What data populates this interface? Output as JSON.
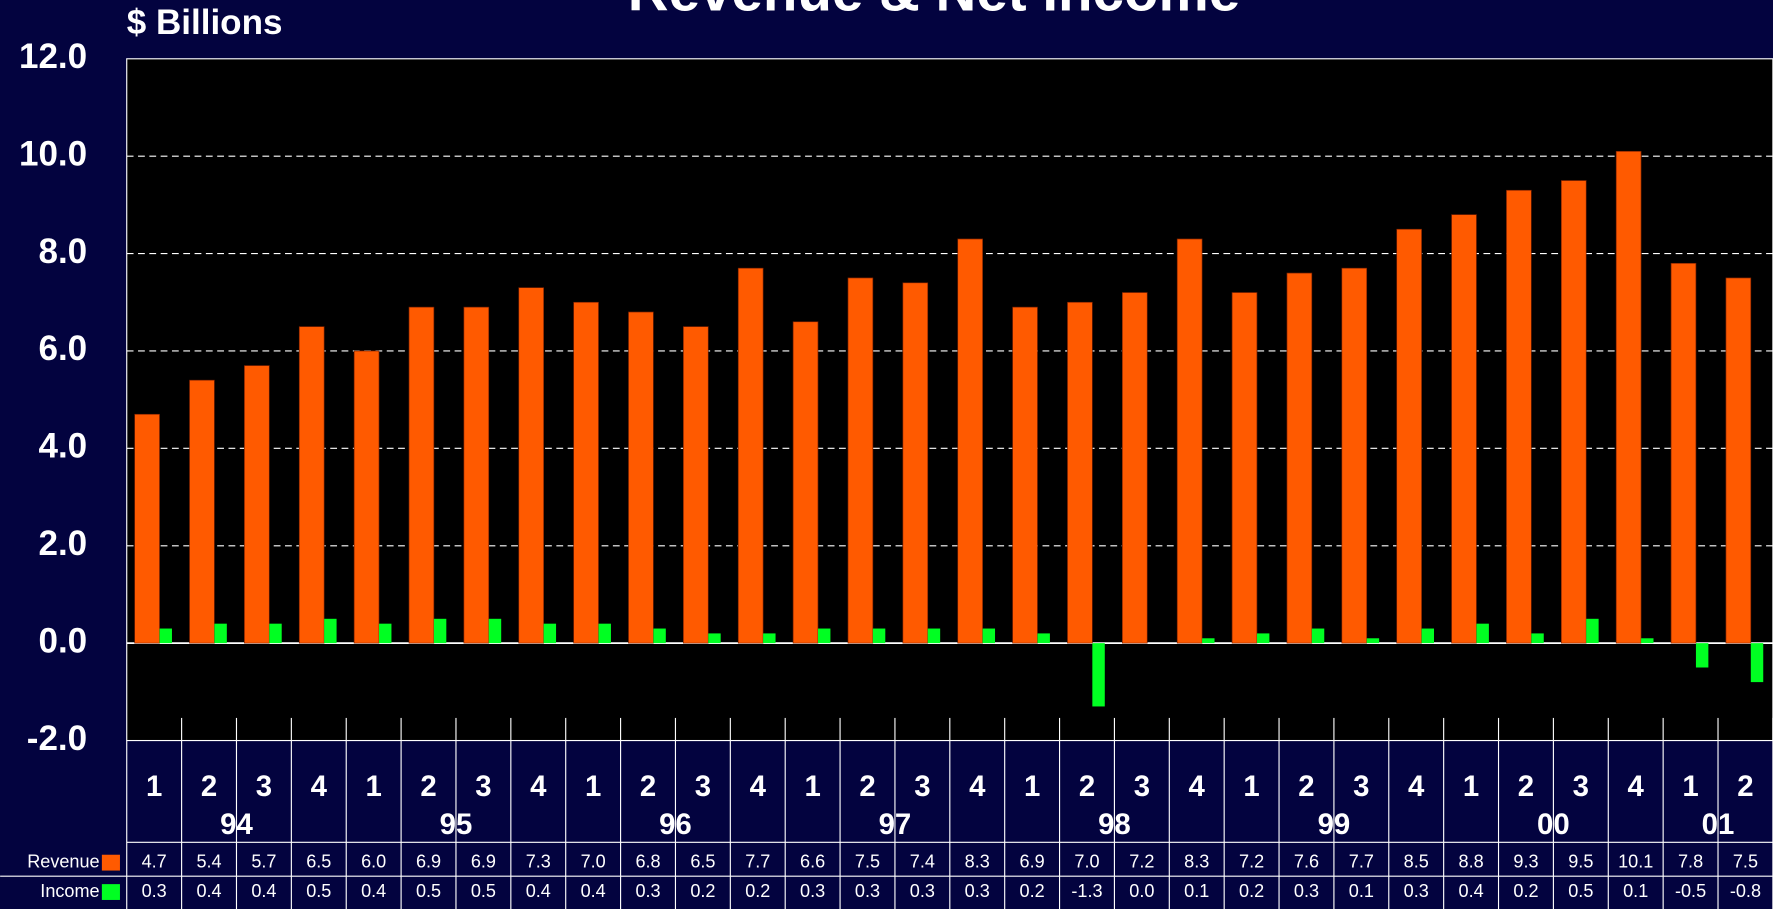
{
  "chart_data": {
    "type": "bar",
    "title": "Revenue & Net Income",
    "y_label": "$ Billions",
    "categories": [
      "1",
      "2",
      "3",
      "4",
      "1",
      "2",
      "3",
      "4",
      "1",
      "2",
      "3",
      "4",
      "1",
      "2",
      "3",
      "4",
      "1",
      "2",
      "3",
      "4",
      "1",
      "2",
      "3",
      "4",
      "1",
      "2",
      "3",
      "4",
      "1",
      "2"
    ],
    "year_labels": [
      "94",
      "95",
      "96",
      "97",
      "98",
      "99",
      "00",
      "01"
    ],
    "series": [
      {
        "name": "Revenue",
        "color": "#ff5a00",
        "values": [
          4.7,
          5.4,
          5.7,
          6.5,
          6.0,
          6.9,
          6.9,
          7.3,
          7.0,
          6.8,
          6.5,
          7.7,
          6.6,
          7.5,
          7.4,
          8.3,
          6.9,
          7.0,
          7.2,
          8.3,
          7.2,
          7.6,
          7.7,
          8.5,
          8.8,
          9.3,
          9.5,
          10.1,
          7.8,
          7.5
        ],
        "value_labels": [
          "4.7",
          "5.4",
          "5.7",
          "6.5",
          "6.0",
          "6.9",
          "6.9",
          "7.3",
          "7.0",
          "6.8",
          "6.5",
          "7.7",
          "6.6",
          "7.5",
          "7.4",
          "8.3",
          "6.9",
          "7.0",
          "7.2",
          "8.3",
          "7.2",
          "7.6",
          "7.7",
          "8.5",
          "8.8",
          "9.3",
          "9.5",
          "10.1",
          "7.8",
          "7.5"
        ]
      },
      {
        "name": "Income",
        "color": "#00ff22",
        "values": [
          0.3,
          0.4,
          0.4,
          0.5,
          0.4,
          0.5,
          0.5,
          0.4,
          0.4,
          0.3,
          0.2,
          0.2,
          0.3,
          0.3,
          0.3,
          0.3,
          0.2,
          -1.3,
          0.0,
          0.1,
          0.2,
          0.3,
          0.1,
          0.3,
          0.4,
          0.2,
          0.5,
          0.1,
          -0.5,
          -0.8
        ],
        "value_labels": [
          "0.3",
          "0.4",
          "0.4",
          "0.5",
          "0.4",
          "0.5",
          "0.5",
          "0.4",
          "0.4",
          "0.3",
          "0.2",
          "0.2",
          "0.3",
          "0.3",
          "0.3",
          "0.3",
          "0.2",
          "-1.3",
          "0.0",
          "0.1",
          "0.2",
          "0.3",
          "0.1",
          "0.3",
          "0.4",
          "0.2",
          "0.5",
          "0.1",
          "-0.5",
          "-0.8"
        ]
      }
    ],
    "ylim": [
      -2,
      12
    ],
    "yticks": [
      {
        "value": -2,
        "label": "-2.0"
      },
      {
        "value": 0,
        "label": "0.0"
      },
      {
        "value": 2,
        "label": "2.0"
      },
      {
        "value": 4,
        "label": "4.0"
      },
      {
        "value": 6,
        "label": "6.0"
      },
      {
        "value": 8,
        "label": "8.0"
      },
      {
        "value": 10,
        "label": "10.0"
      },
      {
        "value": 12,
        "label": "12.0"
      }
    ],
    "grid": true
  }
}
